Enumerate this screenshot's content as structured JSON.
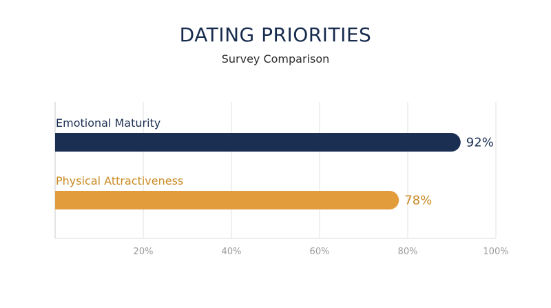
{
  "title": "DATING PRIORITIES",
  "subtitle": "Survey Comparison",
  "chart_data": {
    "type": "bar",
    "orientation": "horizontal",
    "title": "DATING PRIORITIES",
    "subtitle": "Survey Comparison",
    "categories": [
      "Emotional Maturity",
      "Physical Attractiveness"
    ],
    "values": [
      92,
      78
    ],
    "value_labels": [
      "92%",
      "78%"
    ],
    "colors": [
      "#1a2f52",
      "#e39c3c"
    ],
    "label_colors": [
      "#1a2f52",
      "#c98a22"
    ],
    "xlim": [
      0,
      100
    ],
    "x_ticks": [
      20,
      40,
      60,
      80,
      100
    ],
    "x_tick_labels": [
      "20%",
      "40%",
      "60%",
      "80%",
      "100%"
    ],
    "grid": true,
    "xlabel": "",
    "ylabel": ""
  }
}
